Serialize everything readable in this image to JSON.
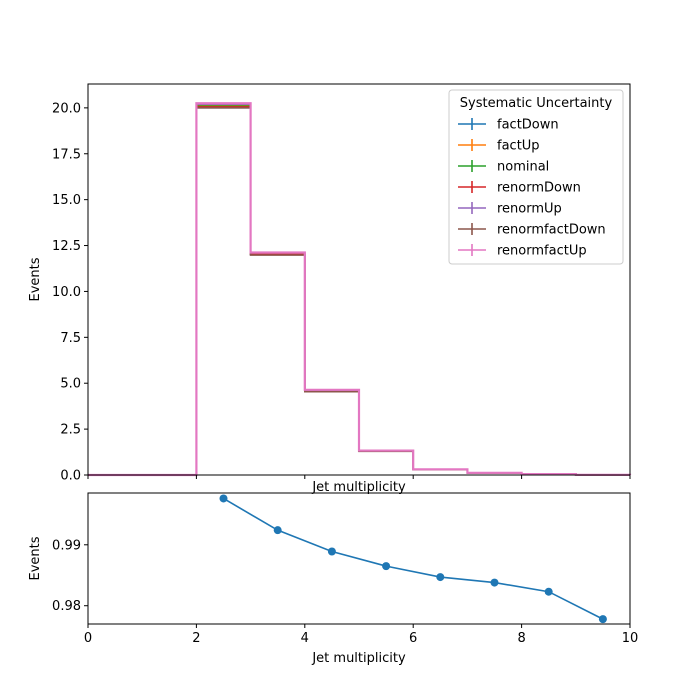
{
  "chart_data": [
    {
      "type": "line",
      "xlabel": "Jet multiplicity",
      "ylabel": "Events",
      "xlim": [
        0,
        10
      ],
      "ylim": [
        0,
        21.3
      ],
      "bin_edges": [
        0,
        1,
        2,
        3,
        4,
        5,
        6,
        7,
        8,
        9,
        10
      ],
      "yticks": [
        0.0,
        2.5,
        5.0,
        7.5,
        10.0,
        12.5,
        15.0,
        17.5,
        20.0
      ],
      "ytick_labels": [
        "0.0",
        "2.5",
        "5.0",
        "7.5",
        "10.0",
        "12.5",
        "15.0",
        "17.5",
        "20.0"
      ],
      "grid": false,
      "legend": {
        "title": "Systematic Uncertainty",
        "placement": "top-right"
      },
      "series": [
        {
          "name": "factDown",
          "color": "#1f77b4",
          "values": [
            0,
            0,
            20.0,
            12.0,
            4.55,
            1.3,
            0.3,
            0.12,
            0.05,
            0.01
          ]
        },
        {
          "name": "factUp",
          "color": "#ff7f0e",
          "values": [
            0,
            0,
            20.15,
            12.08,
            4.6,
            1.32,
            0.31,
            0.12,
            0.05,
            0.01
          ]
        },
        {
          "name": "nominal",
          "color": "#2ca02c",
          "values": [
            0,
            0,
            20.1,
            12.05,
            4.58,
            1.31,
            0.3,
            0.12,
            0.05,
            0.01
          ]
        },
        {
          "name": "renormDown",
          "color": "#d62728",
          "values": [
            0,
            0,
            20.05,
            12.02,
            4.56,
            1.3,
            0.3,
            0.12,
            0.05,
            0.01
          ]
        },
        {
          "name": "renormUp",
          "color": "#9467bd",
          "values": [
            0,
            0,
            20.2,
            12.1,
            4.62,
            1.32,
            0.31,
            0.12,
            0.05,
            0.01
          ]
        },
        {
          "name": "renormfactDown",
          "color": "#8c564b",
          "values": [
            0,
            0,
            20.0,
            11.98,
            4.54,
            1.29,
            0.3,
            0.12,
            0.05,
            0.01
          ]
        },
        {
          "name": "renormfactUp",
          "color": "#e377c2",
          "values": [
            0,
            0,
            20.25,
            12.12,
            4.64,
            1.33,
            0.31,
            0.12,
            0.05,
            0.01
          ]
        }
      ]
    },
    {
      "type": "line",
      "xlabel": "Jet multiplicity",
      "ylabel": "Events",
      "xlim": [
        0,
        10
      ],
      "ylim": [
        0.977,
        0.9985
      ],
      "xticks": [
        0,
        2,
        4,
        6,
        8,
        10
      ],
      "xtick_labels": [
        "0",
        "2",
        "4",
        "6",
        "8",
        "10"
      ],
      "yticks": [
        0.98,
        0.99
      ],
      "ytick_labels": [
        "0.98",
        "0.99"
      ],
      "grid": false,
      "series": [
        {
          "color": "#1f77b4",
          "x": [
            2.5,
            3.5,
            4.5,
            5.5,
            6.5,
            7.5,
            8.5,
            9.5
          ],
          "y": [
            0.9976,
            0.9924,
            0.9889,
            0.9865,
            0.9847,
            0.9838,
            0.9823,
            0.9778
          ]
        }
      ]
    }
  ]
}
